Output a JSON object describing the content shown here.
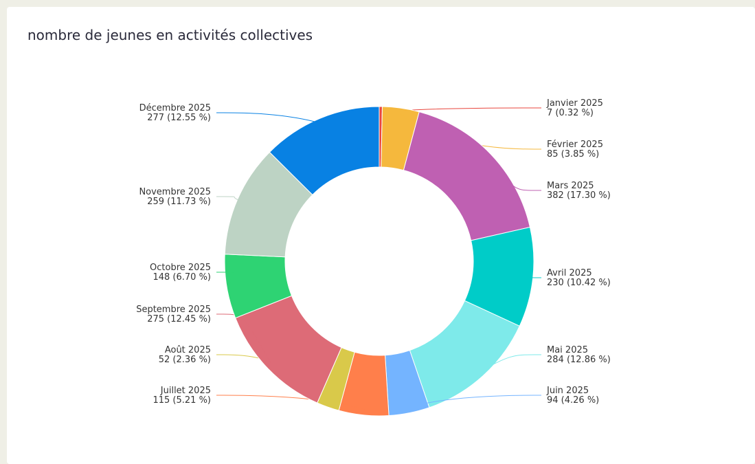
{
  "chart_data": {
    "type": "donut",
    "title": "nombre de jeunes en activités collectives",
    "categories": [
      "Janvier 2025",
      "Février 2025",
      "Mars 2025",
      "Avril 2025",
      "Mai 2025",
      "Juin 2025",
      "Juillet 2025",
      "Août 2025",
      "Septembre 2025",
      "Octobre 2025",
      "Novembre 2025",
      "Décembre 2025"
    ],
    "values": [
      7,
      85,
      382,
      230,
      284,
      94,
      115,
      52,
      275,
      148,
      259,
      277
    ],
    "value_labels": [
      "7 (0.32 %)",
      "85 (3.85 %)",
      "382 (17.30 %)",
      "230 (10.42 %)",
      "284 (12.86 %)",
      "94 (4.26 %)",
      "115 (5.21 %)",
      "52 (2.36 %)",
      "275 (12.45 %)",
      "148 (6.70 %)",
      "259 (11.73 %)",
      "277 (12.55 %)"
    ],
    "colors": [
      "#e8453c",
      "#f5b83d",
      "#bf60b2",
      "#00ccc8",
      "#7eeaea",
      "#74b4ff",
      "#ff7f4b",
      "#d9c94a",
      "#dd6b77",
      "#2ed373",
      "#bdd3c4",
      "#0881e3"
    ]
  }
}
